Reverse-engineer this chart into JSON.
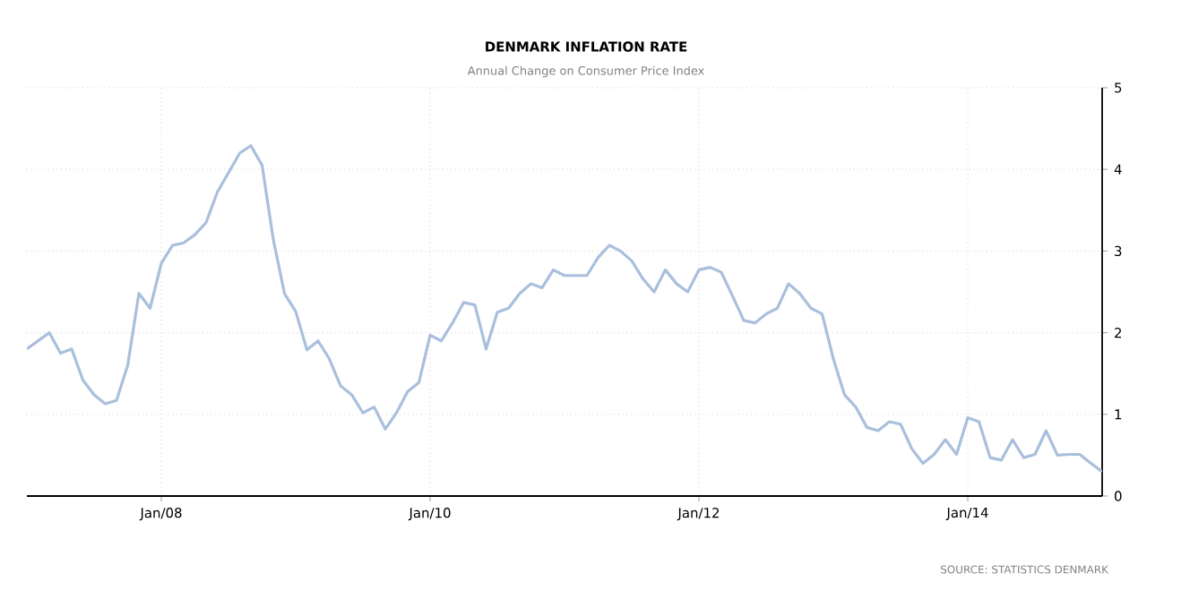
{
  "chart_data": {
    "type": "line",
    "title": "DENMARK INFLATION RATE",
    "subtitle": "Annual Change on Consumer Price Index",
    "annotations": [
      "SOURCE: STATISTICS DENMARK"
    ],
    "x": [
      "2007-01",
      "2007-02",
      "2007-03",
      "2007-04",
      "2007-05",
      "2007-06",
      "2007-07",
      "2007-08",
      "2007-09",
      "2007-10",
      "2007-11",
      "2007-12",
      "2008-01",
      "2008-02",
      "2008-03",
      "2008-04",
      "2008-05",
      "2008-06",
      "2008-07",
      "2008-08",
      "2008-09",
      "2008-10",
      "2008-11",
      "2008-12",
      "2009-01",
      "2009-02",
      "2009-03",
      "2009-04",
      "2009-05",
      "2009-06",
      "2009-07",
      "2009-08",
      "2009-09",
      "2009-10",
      "2009-11",
      "2009-12",
      "2010-01",
      "2010-02",
      "2010-03",
      "2010-04",
      "2010-05",
      "2010-06",
      "2010-07",
      "2010-08",
      "2010-09",
      "2010-10",
      "2010-11",
      "2010-12",
      "2011-01",
      "2011-02",
      "2011-03",
      "2011-04",
      "2011-05",
      "2011-06",
      "2011-07",
      "2011-08",
      "2011-09",
      "2011-10",
      "2011-11",
      "2011-12",
      "2012-01",
      "2012-02",
      "2012-03",
      "2012-04",
      "2012-05",
      "2012-06",
      "2012-07",
      "2012-08",
      "2012-09",
      "2012-10",
      "2012-11",
      "2012-12",
      "2013-01",
      "2013-02",
      "2013-03",
      "2013-04",
      "2013-05",
      "2013-06",
      "2013-07",
      "2013-08",
      "2013-09",
      "2013-10",
      "2013-11",
      "2013-12",
      "2014-01",
      "2014-02",
      "2014-03",
      "2014-04",
      "2014-05",
      "2014-06",
      "2014-07",
      "2014-08",
      "2014-09",
      "2014-10",
      "2014-11",
      "2014-12",
      "2015-01"
    ],
    "values": [
      1.8,
      1.9,
      2.0,
      1.75,
      1.8,
      1.42,
      1.24,
      1.13,
      1.17,
      1.6,
      2.48,
      2.3,
      2.85,
      3.07,
      3.1,
      3.2,
      3.35,
      3.72,
      3.96,
      4.2,
      4.29,
      4.05,
      3.14,
      2.48,
      2.26,
      1.79,
      1.9,
      1.68,
      1.35,
      1.24,
      1.02,
      1.09,
      0.82,
      1.02,
      1.28,
      1.39,
      1.97,
      1.9,
      2.12,
      2.37,
      2.34,
      1.8,
      2.25,
      2.3,
      2.48,
      2.6,
      2.55,
      2.77,
      2.7,
      2.7,
      2.7,
      2.92,
      3.07,
      3.0,
      2.88,
      2.66,
      2.5,
      2.77,
      2.6,
      2.5,
      2.77,
      2.8,
      2.74,
      2.45,
      2.15,
      2.12,
      2.23,
      2.3,
      2.6,
      2.48,
      2.3,
      2.23,
      1.68,
      1.24,
      1.09,
      0.84,
      0.8,
      0.91,
      0.88,
      0.58,
      0.4,
      0.51,
      0.69,
      0.51,
      0.96,
      0.91,
      0.47,
      0.44,
      0.69,
      0.47,
      0.51,
      0.8,
      0.5,
      0.51,
      0.51,
      0.4,
      0.3
    ],
    "color": "#a9bfdc",
    "marker": "none",
    "line_style": "solid",
    "grid": true,
    "xlim": [
      "2007-01",
      "2015-01"
    ],
    "ylim": [
      0,
      5
    ],
    "xticks": [
      {
        "value": "2008-01",
        "label": "Jan/08"
      },
      {
        "value": "2010-01",
        "label": "Jan/10"
      },
      {
        "value": "2012-01",
        "label": "Jan/12"
      },
      {
        "value": "2014-01",
        "label": "Jan/14"
      }
    ],
    "yticks": [
      0,
      1,
      2,
      3,
      4,
      5
    ]
  }
}
